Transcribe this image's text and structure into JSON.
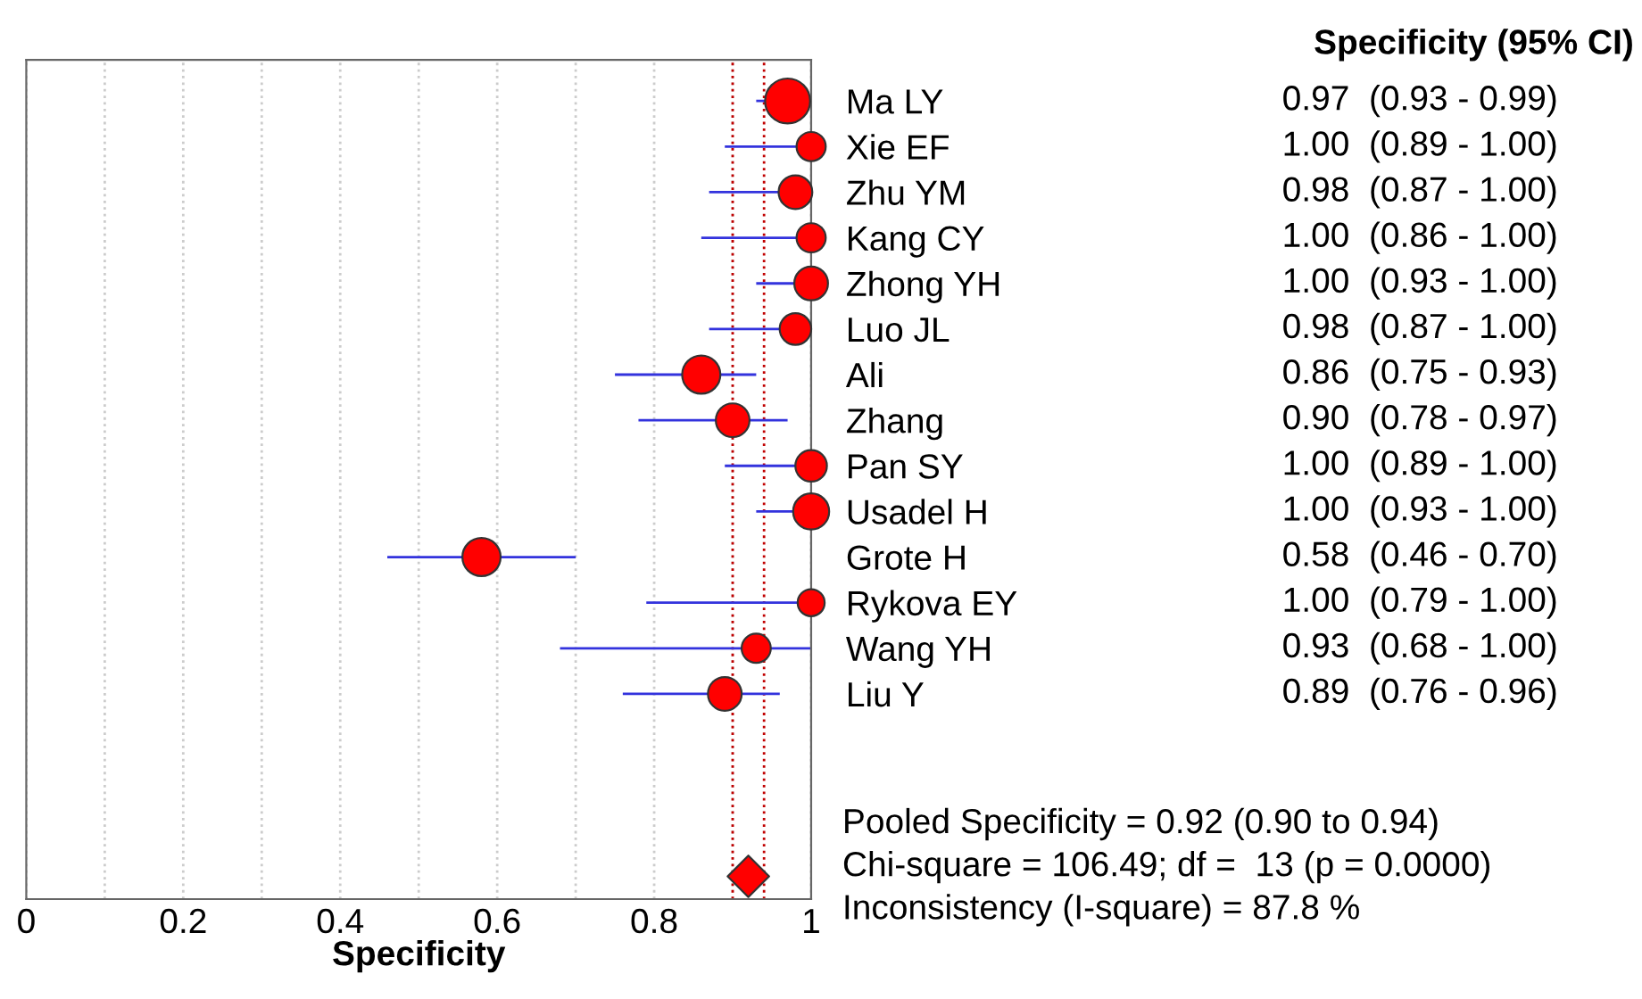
{
  "chart_data": {
    "type": "bubble",
    "orientation": "horizontal",
    "xlabel": "Specificity",
    "categories": [
      "Ma LY",
      "Xie EF",
      "Zhu YM",
      "Kang CY",
      "Zhong YH",
      "Luo JL",
      "Ali",
      "Zhang",
      "Pan SY",
      "Usadel H",
      "Grote H",
      "Rykova EY",
      "Wang YH",
      "Liu Y",
      null,
      null,
      null,
      null
    ],
    "series": [
      {
        "color": "#ff0000",
        "values": [
          0.97,
          1.0,
          0.98,
          1.0,
          1.0,
          0.98,
          0.86,
          0.9,
          1.0,
          1.0,
          0.58,
          1.0,
          0.93,
          0.89,
          null,
          null,
          null,
          null
        ],
        "sizes": [
          1,
          0.42,
          0.56,
          0.42,
          0.56,
          0.49,
          0.72,
          0.56,
          0.49,
          0.64,
          0.72,
          0.36,
          0.42,
          0.56,
          null,
          null,
          null,
          null
        ],
        "errors": [
          [
            0.93,
            0.99
          ],
          [
            0.89,
            1.0
          ],
          [
            0.87,
            1.0
          ],
          [
            0.86,
            1.0
          ],
          [
            0.93,
            1.0
          ],
          [
            0.87,
            1.0
          ],
          [
            0.75,
            0.93
          ],
          [
            0.78,
            0.97
          ],
          [
            0.89,
            1.0
          ],
          [
            0.93,
            1.0
          ],
          [
            0.46,
            0.7
          ],
          [
            0.79,
            1.0
          ],
          [
            0.68,
            1.0
          ],
          [
            0.76,
            0.96
          ],
          null,
          null,
          null,
          null
        ],
        "value_labels": [
          "0.97  (0.93 - 0.99)",
          "1.00  (0.89 - 1.00)",
          "0.98  (0.87 - 1.00)",
          "1.00  (0.86 - 1.00)",
          "1.00  (0.93 - 1.00)",
          "0.98  (0.87 - 1.00)",
          "0.86  (0.75 - 0.93)",
          "0.90  (0.78 - 0.97)",
          "1.00  (0.89 - 1.00)",
          "1.00  (0.93 - 1.00)",
          "0.58  (0.46 - 0.70)",
          "1.00  (0.79 - 1.00)",
          "0.93  (0.68 - 1.00)",
          "0.89  (0.76 - 0.96)",
          null,
          null,
          null,
          null
        ]
      },
      {
        "type": "scatter",
        "marker": "diamond",
        "color": "#ff0000",
        "values": [
          null,
          null,
          null,
          null,
          null,
          null,
          null,
          null,
          null,
          null,
          null,
          null,
          null,
          null,
          null,
          null,
          null,
          0.92
        ]
      }
    ],
    "xlim": [
      0,
      1
    ],
    "xticks": [
      0,
      {
        "value": 0.1,
        "label": null
      },
      0.2,
      {
        "value": 0.3,
        "label": null
      },
      0.4,
      {
        "value": 0.5,
        "label": null
      },
      0.6,
      {
        "value": 0.7,
        "label": null
      },
      0.8,
      {
        "value": 0.9,
        "label": null
      },
      1
    ],
    "grid": "x",
    "ref_lines": [
      {
        "axis": "x",
        "value": 0.9,
        "color": "#c00000",
        "line_style": "dotted"
      },
      {
        "axis": "x",
        "value": 0.94,
        "color": "#c00000",
        "line_style": "dotted"
      }
    ],
    "annotations": [
      "Specificity (95% CI)",
      "Pooled Specificity = 0.92 (0.90 to 0.94)",
      "Chi-square = 106.49; df =  13 (p = 0.0000)",
      "Inconsistency (I-square) = 87.8 %"
    ]
  }
}
